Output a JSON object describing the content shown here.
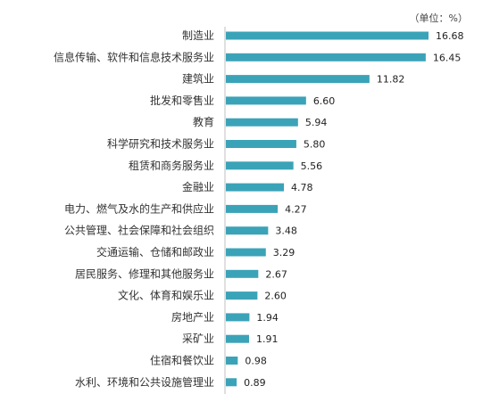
{
  "chart_data": {
    "type": "bar",
    "orientation": "horizontal",
    "unit": "（单位：%）",
    "categories": [
      "制造业",
      "信息传输、软件和信息技术服务业",
      "建筑业",
      "批发和零售业",
      "教育",
      "科学研究和技术服务业",
      "租赁和商务服务业",
      "金融业",
      "电力、燃气及水的生产和供应业",
      "公共管理、社会保障和社会组织",
      "交通运输、仓储和邮政业",
      "居民服务、修理和其他服务业",
      "文化、体育和娱乐业",
      "房地产业",
      "采矿业",
      "住宿和餐饮业",
      "水利、环境和公共设施管理业"
    ],
    "values": [
      16.68,
      16.45,
      11.82,
      6.6,
      5.94,
      5.8,
      5.56,
      4.78,
      4.27,
      3.48,
      3.29,
      2.67,
      2.6,
      1.94,
      1.91,
      0.98,
      0.89
    ],
    "value_labels": [
      "16.68",
      "16.45",
      "11.82",
      "6.60",
      "5.94",
      "5.80",
      "5.56",
      "4.78",
      "4.27",
      "3.48",
      "3.29",
      "2.67",
      "2.60",
      "1.94",
      "1.91",
      "0.98",
      "0.89"
    ],
    "xlim": [
      0,
      16.68
    ],
    "grid": false,
    "bar_color": "#3ba3b8"
  }
}
